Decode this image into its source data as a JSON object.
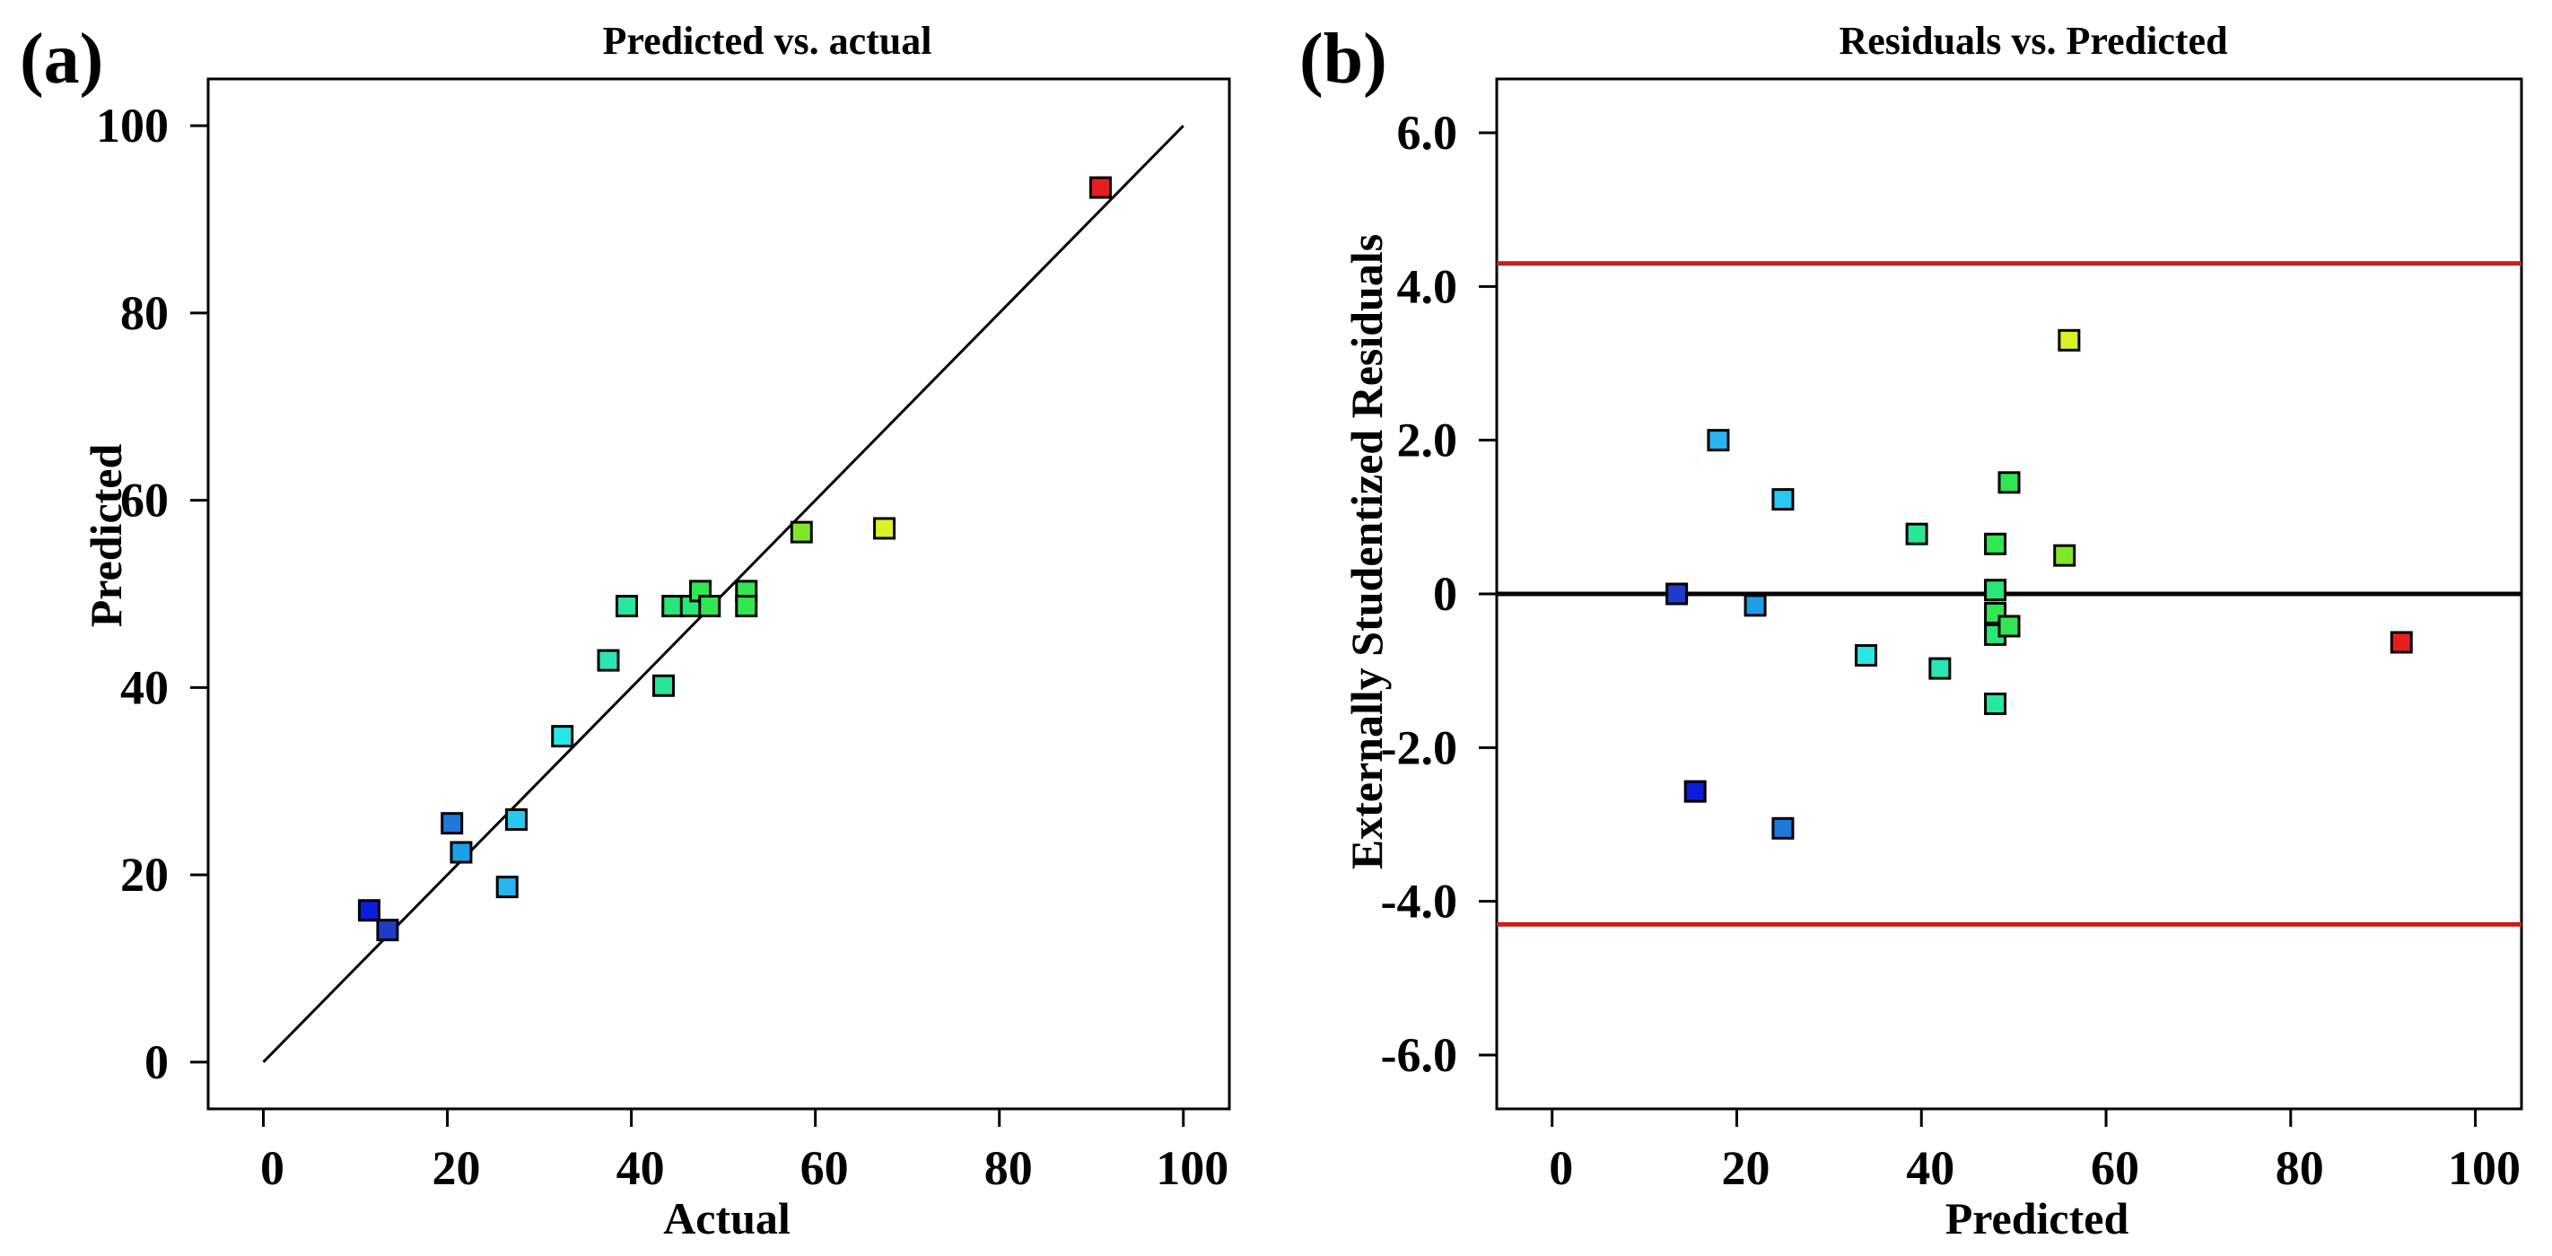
{
  "chart_data": [
    {
      "panel_label": "(a)",
      "type": "scatter",
      "title": "Predicted vs. actual",
      "xlabel": "Actual",
      "ylabel": "Predicted",
      "xlim": [
        -6,
        105
      ],
      "ylim": [
        -5,
        105
      ],
      "xticks": [
        0,
        20,
        40,
        60,
        80,
        100
      ],
      "xtick_labels": [
        "0",
        "20",
        "40",
        "60",
        "80",
        "100"
      ],
      "yticks": [
        0,
        20,
        40,
        60,
        80,
        100
      ],
      "ytick_labels": [
        "0",
        "20",
        "40",
        "60",
        "80",
        "100"
      ],
      "grid": false,
      "reference_line": {
        "from": [
          0,
          0
        ],
        "to": [
          100,
          100
        ],
        "color": "#000000"
      },
      "points": [
        {
          "x": 11.5,
          "y": 16.2,
          "color": "#0a1edc"
        },
        {
          "x": 13.5,
          "y": 14.1,
          "color": "#1e3cc8"
        },
        {
          "x": 20.5,
          "y": 25.5,
          "color": "#1e78dc"
        },
        {
          "x": 21.5,
          "y": 22.4,
          "color": "#1e9ee6"
        },
        {
          "x": 26.5,
          "y": 18.7,
          "color": "#28b4f0"
        },
        {
          "x": 27.5,
          "y": 25.9,
          "color": "#28c8f0"
        },
        {
          "x": 32.5,
          "y": 34.8,
          "color": "#28e6e6"
        },
        {
          "x": 37.5,
          "y": 42.9,
          "color": "#28e6b4"
        },
        {
          "x": 39.5,
          "y": 48.7,
          "color": "#28e6a0"
        },
        {
          "x": 43.5,
          "y": 40.2,
          "color": "#28e696"
        },
        {
          "x": 44.5,
          "y": 48.7,
          "color": "#28e678"
        },
        {
          "x": 46.5,
          "y": 48.7,
          "color": "#28e678"
        },
        {
          "x": 47.5,
          "y": 50.3,
          "color": "#32e650"
        },
        {
          "x": 48.5,
          "y": 48.7,
          "color": "#32e650"
        },
        {
          "x": 52.5,
          "y": 50.3,
          "color": "#32e650"
        },
        {
          "x": 52.5,
          "y": 48.7,
          "color": "#32e650"
        },
        {
          "x": 58.5,
          "y": 56.6,
          "color": "#82e628"
        },
        {
          "x": 67.5,
          "y": 57.0,
          "color": "#dcf028"
        },
        {
          "x": 91.0,
          "y": 93.4,
          "color": "#e61e1e"
        }
      ]
    },
    {
      "panel_label": "(b)",
      "type": "scatter",
      "title": "Residuals vs. Predicted",
      "xlabel": "Predicted",
      "ylabel": "Externally Studentized Residuals",
      "xlim": [
        -6,
        105
      ],
      "ylim": [
        -6.7,
        6.7
      ],
      "xticks": [
        0,
        20,
        40,
        60,
        80,
        100
      ],
      "xtick_labels": [
        "0",
        "20",
        "40",
        "60",
        "80",
        "100"
      ],
      "yticks": [
        6,
        4,
        2,
        0,
        -2,
        -4,
        -6
      ],
      "ytick_labels": [
        "6.0",
        "4.0",
        "2.0",
        "0",
        "-2.0",
        "-4.0",
        "-6.0"
      ],
      "grid": false,
      "zero_line": {
        "y": 0,
        "color": "#000000"
      },
      "limit_lines": [
        {
          "y": 4.3,
          "color": "#c81e1e"
        },
        {
          "y": -4.3,
          "color": "#c81e1e"
        }
      ],
      "points": [
        {
          "x": 13.5,
          "y": 0.0,
          "color": "#1e3cc8"
        },
        {
          "x": 15.5,
          "y": -2.57,
          "color": "#0a1edc"
        },
        {
          "x": 18.0,
          "y": 2.0,
          "color": "#28b4f0"
        },
        {
          "x": 22.0,
          "y": -0.15,
          "color": "#1e9ee6"
        },
        {
          "x": 25.0,
          "y": 1.23,
          "color": "#28c8f0"
        },
        {
          "x": 25.0,
          "y": -3.05,
          "color": "#1e78dc"
        },
        {
          "x": 34.0,
          "y": -0.8,
          "color": "#28e6e6"
        },
        {
          "x": 39.5,
          "y": 0.78,
          "color": "#28e696"
        },
        {
          "x": 42.0,
          "y": -0.97,
          "color": "#28e6b4"
        },
        {
          "x": 48.0,
          "y": 0.65,
          "color": "#32e650"
        },
        {
          "x": 48.0,
          "y": 0.05,
          "color": "#28e678"
        },
        {
          "x": 48.0,
          "y": -0.25,
          "color": "#32e650"
        },
        {
          "x": 48.0,
          "y": -0.53,
          "color": "#28e678"
        },
        {
          "x": 48.0,
          "y": -1.43,
          "color": "#28e6a0"
        },
        {
          "x": 49.5,
          "y": -0.42,
          "color": "#32e650"
        },
        {
          "x": 49.5,
          "y": 1.45,
          "color": "#32e650"
        },
        {
          "x": 55.5,
          "y": 0.5,
          "color": "#82e628"
        },
        {
          "x": 56.0,
          "y": 3.3,
          "color": "#dcf028"
        },
        {
          "x": 92.0,
          "y": -0.63,
          "color": "#e61e1e"
        }
      ]
    }
  ]
}
